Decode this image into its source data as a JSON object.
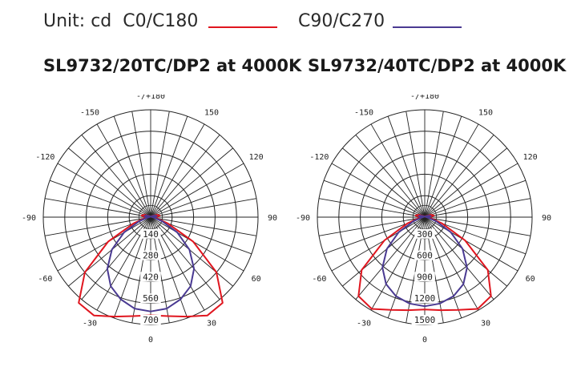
{
  "legend": {
    "unit": "Unit: cd",
    "series_c0": "C0/C180",
    "series_c90": "C90/C270",
    "color_c0": "#e0161f",
    "color_c90": "#4a3a92"
  },
  "chart_data": [
    {
      "type": "polar",
      "title": "SL9732/20TC/DP2 at 4000K",
      "angle_labels": [
        {
          "angle": 180,
          "text": "-/+180"
        },
        {
          "angle": -150,
          "text": "-150"
        },
        {
          "angle": 150,
          "text": "150"
        },
        {
          "angle": -120,
          "text": "-120"
        },
        {
          "angle": 120,
          "text": "120"
        },
        {
          "angle": -90,
          "text": "-90"
        },
        {
          "angle": 90,
          "text": "90"
        },
        {
          "angle": -60,
          "text": "-60"
        },
        {
          "angle": 60,
          "text": "60"
        },
        {
          "angle": -30,
          "text": "-30"
        },
        {
          "angle": 30,
          "text": "30"
        },
        {
          "angle": 0,
          "text": "0"
        }
      ],
      "radial_labels": [
        "140",
        "280",
        "420",
        "560",
        "700"
      ],
      "rmax": 700,
      "rings": 5,
      "grid": true,
      "series": [
        {
          "name": "C0/C180",
          "color": "#e0161f",
          "angles": [
            0,
            10,
            20,
            30,
            40,
            50,
            60,
            70,
            80,
            85,
            90,
            95,
            100,
            110,
            120,
            135,
            150,
            165,
            180
          ],
          "values": [
            640,
            655,
            690,
            740,
            730,
            560,
            320,
            120,
            40,
            25,
            18,
            35,
            60,
            45,
            20,
            10,
            6,
            4,
            2
          ]
        },
        {
          "name": "C90/C270",
          "color": "#4a3a92",
          "angles": [
            0,
            10,
            20,
            30,
            40,
            50,
            60,
            70,
            80,
            85,
            90,
            95,
            100,
            110,
            120,
            135,
            150,
            165,
            180
          ],
          "values": [
            615,
            605,
            570,
            520,
            440,
            330,
            200,
            80,
            25,
            14,
            10,
            30,
            40,
            30,
            15,
            8,
            5,
            3,
            2
          ]
        }
      ]
    },
    {
      "type": "polar",
      "title": "SL9732/40TC/DP2 at 4000K",
      "angle_labels": [
        {
          "angle": 180,
          "text": "-/+180"
        },
        {
          "angle": -150,
          "text": "-150"
        },
        {
          "angle": 150,
          "text": "150"
        },
        {
          "angle": -120,
          "text": "-120"
        },
        {
          "angle": 120,
          "text": "120"
        },
        {
          "angle": -90,
          "text": "-90"
        },
        {
          "angle": 90,
          "text": "90"
        },
        {
          "angle": -60,
          "text": "-60"
        },
        {
          "angle": 60,
          "text": "60"
        },
        {
          "angle": -30,
          "text": "-30"
        },
        {
          "angle": 30,
          "text": "30"
        },
        {
          "angle": 0,
          "text": "0"
        }
      ],
      "radial_labels": [
        "300",
        "600",
        "900",
        "1200",
        "1500"
      ],
      "rmax": 1500,
      "rings": 5,
      "grid": true,
      "series": [
        {
          "name": "C0/C180",
          "color": "#e0161f",
          "angles": [
            0,
            10,
            20,
            30,
            40,
            50,
            60,
            70,
            80,
            85,
            90,
            95,
            100,
            110,
            120,
            135,
            150,
            165,
            180
          ],
          "values": [
            1290,
            1320,
            1380,
            1480,
            1440,
            1150,
            650,
            260,
            90,
            50,
            38,
            70,
            130,
            95,
            40,
            20,
            12,
            8,
            4
          ]
        },
        {
          "name": "C90/C270",
          "color": "#4a3a92",
          "angles": [
            0,
            10,
            20,
            30,
            40,
            50,
            60,
            70,
            80,
            85,
            90,
            95,
            100,
            110,
            120,
            135,
            150,
            165,
            180
          ],
          "values": [
            1245,
            1225,
            1175,
            1080,
            920,
            690,
            420,
            170,
            55,
            30,
            22,
            60,
            85,
            60,
            30,
            15,
            10,
            6,
            4
          ]
        }
      ]
    }
  ]
}
